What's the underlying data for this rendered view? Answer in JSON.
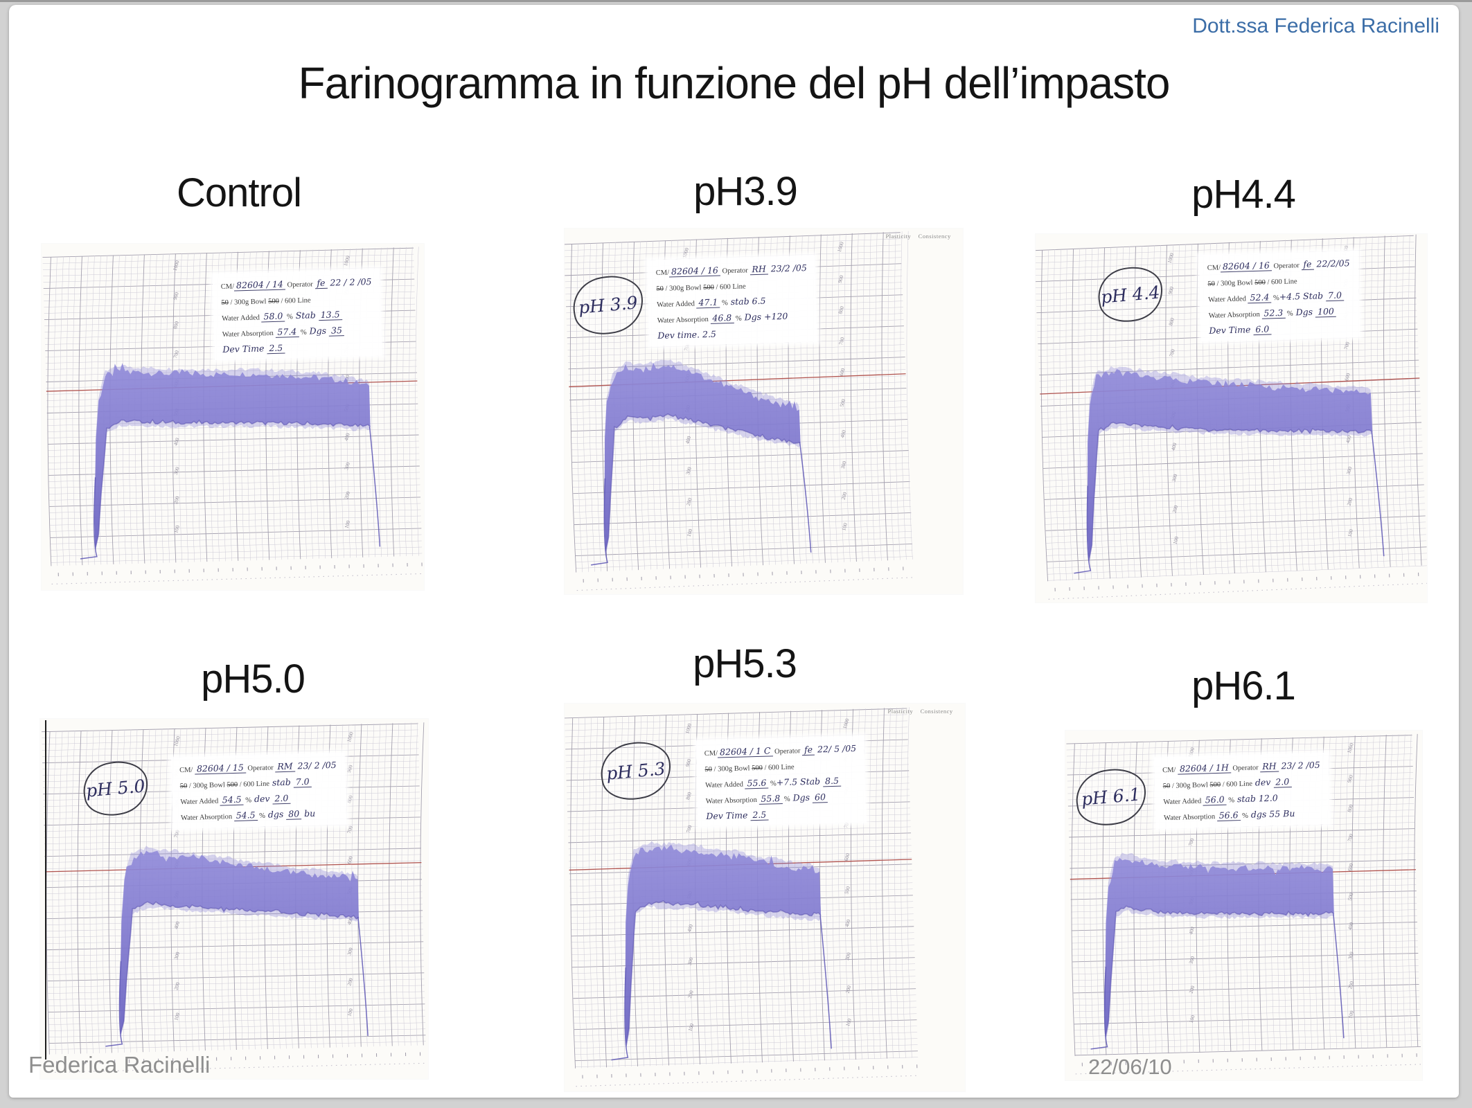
{
  "page": {
    "header_right": "Dott.ssa Federica Racinelli",
    "title": "Farinogramma in funzione del pH dell’impasto",
    "footer_left": "Federica Racinelli",
    "footer_date": "22/06/10"
  },
  "colors": {
    "header_blue": "#3b6da7",
    "title_black": "#141414",
    "footer_gray": "#8e8e8e",
    "trace_purple": "#7b74cc",
    "red_target_line": "#b0524e",
    "grid_minor": "#cdcad6",
    "grid_major": "#a39fae",
    "paper": "#fcfbf8"
  },
  "chart_common": {
    "instrument": "Brabender Farinograph chart paper",
    "bowl_printed": "50 / 300g Bowl",
    "line_printed": "500 / 600 Line",
    "y_unit": "BU (Brabender Units)",
    "x_unit": "time (min)",
    "y_ticks_bu": [
      1000,
      900,
      800,
      700,
      600,
      500,
      400,
      300,
      200,
      100
    ],
    "red_line_bu": 600,
    "corner_printed": "Plasticity    Consistency"
  },
  "chart_data": [
    {
      "type": "area",
      "label": "Control",
      "ph_circle": "",
      "corner_text": "",
      "cm": "82604 / 14",
      "operator": "fe",
      "date": "22 / 2 / 05",
      "water_added": "58.0 %",
      "water_absorption": "57.4 %",
      "stability": "13.5",
      "dgs": "35",
      "dev_time": "2.5",
      "red_line_bu": 600,
      "band_bu": [
        [
          12,
          160,
          60
        ],
        [
          13,
          430,
          110
        ],
        [
          14,
          560,
          240
        ],
        [
          16,
          645,
          470
        ],
        [
          20,
          665,
          490
        ],
        [
          27,
          655,
          485
        ],
        [
          36,
          648,
          478
        ],
        [
          48,
          642,
          475
        ],
        [
          58,
          638,
          472
        ],
        [
          68,
          628,
          465
        ],
        [
          77,
          615,
          458
        ],
        [
          83,
          600,
          452
        ],
        [
          87,
          588,
          448
        ]
      ],
      "form_lines": [
        [
          {
            "t": "CM/"
          },
          {
            "t": "82604 / 14",
            "h": 1,
            "u": 1
          },
          {
            "t": "  Operator "
          },
          {
            "t": "fe",
            "h": 1,
            "u": 1
          },
          {
            "t": "  22 / 2 /05",
            "h": 1
          }
        ],
        [
          {
            "t": "50",
            "s": 1
          },
          {
            "t": " / 300g Bowl       "
          },
          {
            "t": "500",
            "s": 1
          },
          {
            "t": " / 600 Line"
          }
        ],
        [
          {
            "t": "Water Added "
          },
          {
            "t": "58.0",
            "h": 1,
            "u": 1
          },
          {
            "t": " %"
          },
          {
            "t": "     Stab  ",
            "h": 1
          },
          {
            "t": "13.5",
            "h": 1,
            "u": 1
          }
        ],
        [
          {
            "t": "Water Absorption "
          },
          {
            "t": "57.4",
            "h": 1,
            "u": 1
          },
          {
            "t": " %"
          },
          {
            "t": " Dgs  ",
            "h": 1
          },
          {
            "t": "35",
            "h": 1,
            "u": 1
          }
        ],
        [
          {
            "t": "Dev Time  ",
            "h": 1
          },
          {
            "t": "2.5",
            "h": 1,
            "u": 1
          }
        ]
      ]
    },
    {
      "type": "area",
      "label": "pH3.9",
      "ph_circle": "pH 3.9",
      "corner_text": "Plasticity    Consistency",
      "cm": "82604 / 16",
      "operator": "RH",
      "date": "23 / 2 / 05",
      "water_added": "47.1 %",
      "water_absorption": "46.8 %",
      "stability": "6.5",
      "dgs": "+120",
      "dev_time": "2.5",
      "red_line_bu": 600,
      "band_bu": [
        [
          9,
          160,
          60
        ],
        [
          10,
          420,
          110
        ],
        [
          11,
          540,
          230
        ],
        [
          13,
          625,
          460
        ],
        [
          17,
          655,
          495
        ],
        [
          23,
          648,
          488
        ],
        [
          29,
          658,
          496
        ],
        [
          35,
          640,
          480
        ],
        [
          43,
          600,
          455
        ],
        [
          51,
          565,
          432
        ],
        [
          59,
          530,
          410
        ],
        [
          66,
          505,
          395
        ],
        [
          68,
          498,
          392
        ]
      ],
      "form_lines": [
        [
          {
            "t": "CM/"
          },
          {
            "t": "82604  / 16",
            "h": 1,
            "u": 1
          },
          {
            "t": "  Operator "
          },
          {
            "t": "RH",
            "h": 1,
            "u": 1
          },
          {
            "t": "  23/2 /05",
            "h": 1
          }
        ],
        [
          {
            "t": "50",
            "s": 1
          },
          {
            "t": " / 300g Bowl       "
          },
          {
            "t": "500",
            "s": 1
          },
          {
            "t": " / 600 Line"
          }
        ],
        [
          {
            "t": "Water Added "
          },
          {
            "t": "47.1",
            "h": 1,
            "u": 1
          },
          {
            "t": " %"
          },
          {
            "t": "      stab  6.5",
            "h": 1
          }
        ],
        [
          {
            "t": "Water Absorption "
          },
          {
            "t": "46.8",
            "h": 1,
            "u": 1
          },
          {
            "t": " %"
          },
          {
            "t": "    Dgs +120",
            "h": 1
          }
        ],
        [
          {
            "t": "  Dev time. 2.5",
            "h": 1
          }
        ]
      ]
    },
    {
      "type": "area",
      "label": "pH4.4",
      "ph_circle": "pH 4.4",
      "corner_text": "",
      "cm": "82604 / 16",
      "operator": "fe",
      "date": "22 / 2 / 05",
      "water_added": "52.4 % +4.5",
      "water_absorption": "52.3 %",
      "stability": "7.0",
      "dgs": "100",
      "dev_time": "6.0",
      "red_line_bu": 600,
      "band_bu": [
        [
          11,
          160,
          60
        ],
        [
          12,
          430,
          110
        ],
        [
          13,
          560,
          250
        ],
        [
          15,
          648,
          478
        ],
        [
          19,
          660,
          496
        ],
        [
          25,
          650,
          488
        ],
        [
          33,
          635,
          476
        ],
        [
          44,
          615,
          464
        ],
        [
          56,
          598,
          455
        ],
        [
          67,
          585,
          448
        ],
        [
          77,
          572,
          442
        ],
        [
          84,
          565,
          438
        ],
        [
          87,
          560,
          435
        ]
      ],
      "form_lines": [
        [
          {
            "t": "CM/"
          },
          {
            "t": "82604 / 16",
            "h": 1,
            "u": 1
          },
          {
            "t": " Operator "
          },
          {
            "t": "fe",
            "h": 1,
            "u": 1
          },
          {
            "t": "  22/2/05",
            "h": 1
          }
        ],
        [
          {
            "t": "50",
            "s": 1
          },
          {
            "t": " / 300g Bowl       "
          },
          {
            "t": "500",
            "s": 1
          },
          {
            "t": " / 600 Line"
          }
        ],
        [
          {
            "t": "Water Added "
          },
          {
            "t": "52.4",
            "h": 1,
            "u": 1
          },
          {
            "t": " %"
          },
          {
            "t": "+4.5  Stab ",
            "h": 1
          },
          {
            "t": "7.0",
            "h": 1,
            "u": 1
          }
        ],
        [
          {
            "t": "Water Absorption "
          },
          {
            "t": "52.3",
            "h": 1,
            "u": 1
          },
          {
            "t": " %"
          },
          {
            "t": "  Dgs ",
            "h": 1
          },
          {
            "t": "100",
            "h": 1,
            "u": 1
          }
        ],
        [
          {
            "t": "Dev Time  ",
            "h": 1
          },
          {
            "t": "6.0",
            "h": 1,
            "u": 1
          }
        ]
      ]
    },
    {
      "type": "area",
      "label": "pH5.0",
      "ph_circle": "pH 5.0",
      "corner_text": "",
      "cm": "82604 / 15",
      "operator": "RM",
      "date": "23 / 2 / 05",
      "water_added": "54.5 %",
      "water_absorption": "54.5 %",
      "stability": "7.0",
      "dgs": "80 bu",
      "dev_time": "2.0",
      "red_line_bu": 600,
      "band_bu": [
        [
          19,
          160,
          60
        ],
        [
          20,
          430,
          110
        ],
        [
          21,
          555,
          245
        ],
        [
          23,
          640,
          470
        ],
        [
          27,
          655,
          488
        ],
        [
          33,
          645,
          480
        ],
        [
          41,
          630,
          470
        ],
        [
          50,
          612,
          460
        ],
        [
          59,
          592,
          450
        ],
        [
          68,
          575,
          440
        ],
        [
          76,
          562,
          433
        ],
        [
          81,
          554,
          428
        ],
        [
          83,
          550,
          426
        ]
      ],
      "form_lines": [
        [
          {
            "t": "CM/ "
          },
          {
            "t": "82604  / 15",
            "h": 1,
            "u": 1
          },
          {
            "t": "  Operator "
          },
          {
            "t": "RM",
            "h": 1,
            "u": 1
          },
          {
            "t": "  23/ 2 /05",
            "h": 1
          }
        ],
        [
          {
            "t": "50",
            "s": 1
          },
          {
            "t": " / 300g Bowl       "
          },
          {
            "t": "500",
            "s": 1
          },
          {
            "t": " / 600 Line"
          },
          {
            "t": "  stab ",
            "h": 1
          },
          {
            "t": "7.0",
            "h": 1,
            "u": 1
          }
        ],
        [
          {
            "t": "Water Added "
          },
          {
            "t": "54.5",
            "h": 1,
            "u": 1
          },
          {
            "t": " %"
          },
          {
            "t": "   dev ",
            "h": 1
          },
          {
            "t": "2.0",
            "h": 1,
            "u": 1
          }
        ],
        [
          {
            "t": "Water Absorption "
          },
          {
            "t": "54.5",
            "h": 1,
            "u": 1
          },
          {
            "t": " %"
          },
          {
            "t": " dgs ",
            "h": 1
          },
          {
            "t": "80",
            "h": 1,
            "u": 1
          },
          {
            "t": " bu",
            "h": 1
          }
        ]
      ]
    },
    {
      "type": "area",
      "label": "pH5.3",
      "ph_circle": "pH 5.3",
      "corner_text": "Plasticity    Consistency",
      "cm": "82604 / 1C",
      "operator": "fe",
      "date": "22 / 5 / 05",
      "water_added": "55.6 % +7.5",
      "water_absorption": "55.8 %",
      "stability": "8.5",
      "dgs": "60",
      "dev_time": "2.5",
      "red_line_bu": 600,
      "band_bu": [
        [
          15,
          160,
          60
        ],
        [
          16,
          430,
          110
        ],
        [
          17,
          555,
          245
        ],
        [
          19,
          645,
          475
        ],
        [
          23,
          660,
          495
        ],
        [
          30,
          652,
          488
        ],
        [
          38,
          645,
          482
        ],
        [
          46,
          632,
          472
        ],
        [
          54,
          612,
          460
        ],
        [
          62,
          594,
          450
        ],
        [
          69,
          580,
          442
        ],
        [
          73,
          572,
          438
        ]
      ],
      "form_lines": [
        [
          {
            "t": "CM/"
          },
          {
            "t": "82604 / 1 C",
            "h": 1,
            "u": 1
          },
          {
            "t": " Operator "
          },
          {
            "t": "fe",
            "h": 1,
            "u": 1
          },
          {
            "t": "  22/ 5 /05",
            "h": 1
          }
        ],
        [
          {
            "t": "50",
            "s": 1
          },
          {
            "t": " / 300g Bowl       "
          },
          {
            "t": "500",
            "s": 1
          },
          {
            "t": " / 600 Line"
          }
        ],
        [
          {
            "t": "Water Added "
          },
          {
            "t": "55.6",
            "h": 1,
            "u": 1
          },
          {
            "t": " %"
          },
          {
            "t": "+7.5  Stab ",
            "h": 1
          },
          {
            "t": "8.5",
            "h": 1,
            "u": 1
          }
        ],
        [
          {
            "t": "Water Absorption "
          },
          {
            "t": "55.8",
            "h": 1,
            "u": 1
          },
          {
            "t": " %"
          },
          {
            "t": "  Dgs ",
            "h": 1
          },
          {
            "t": "60",
            "h": 1,
            "u": 1
          }
        ],
        [
          {
            "t": "Dev Time  ",
            "h": 1
          },
          {
            "t": "2.5",
            "h": 1,
            "u": 1
          }
        ]
      ]
    },
    {
      "type": "area",
      "label": "pH6.1",
      "ph_circle": "pH 6.1",
      "corner_text": "",
      "cm": "82604 / 1H",
      "operator": "RH",
      "date": "23 / 2 / 05",
      "water_added": "56.0 %",
      "water_absorption": "56.6 %",
      "stability": "12.0",
      "dgs": "55 Bu",
      "dev_time": "2.0",
      "red_line_bu": 600,
      "band_bu": [
        [
          9,
          160,
          60
        ],
        [
          10,
          440,
          115
        ],
        [
          11,
          565,
          255
        ],
        [
          13,
          655,
          485
        ],
        [
          16,
          668,
          500
        ],
        [
          21,
          650,
          488
        ],
        [
          28,
          638,
          478
        ],
        [
          37,
          630,
          472
        ],
        [
          48,
          624,
          468
        ],
        [
          58,
          620,
          465
        ],
        [
          67,
          616,
          462
        ],
        [
          73,
          612,
          460
        ],
        [
          76,
          610,
          458
        ]
      ],
      "form_lines": [
        [
          {
            "t": "CM/ "
          },
          {
            "t": "82604  / 1H",
            "h": 1,
            "u": 1
          },
          {
            "t": "  Operator "
          },
          {
            "t": "RH",
            "h": 1,
            "u": 1
          },
          {
            "t": "  23/ 2 /05",
            "h": 1
          }
        ],
        [
          {
            "t": "50",
            "s": 1
          },
          {
            "t": " / 300g Bowl       "
          },
          {
            "t": "500",
            "s": 1
          },
          {
            "t": " / 600 Line"
          },
          {
            "t": "  dev ",
            "h": 1
          },
          {
            "t": "2.0",
            "h": 1,
            "u": 1
          }
        ],
        [
          {
            "t": "Water Added "
          },
          {
            "t": "56.0",
            "h": 1,
            "u": 1
          },
          {
            "t": " %"
          },
          {
            "t": "    stab  12.0",
            "h": 1
          }
        ],
        [
          {
            "t": "Water Absorption "
          },
          {
            "t": "56.6",
            "h": 1,
            "u": 1
          },
          {
            "t": " %"
          },
          {
            "t": "  dgs  55 Bu",
            "h": 1
          }
        ]
      ]
    }
  ]
}
